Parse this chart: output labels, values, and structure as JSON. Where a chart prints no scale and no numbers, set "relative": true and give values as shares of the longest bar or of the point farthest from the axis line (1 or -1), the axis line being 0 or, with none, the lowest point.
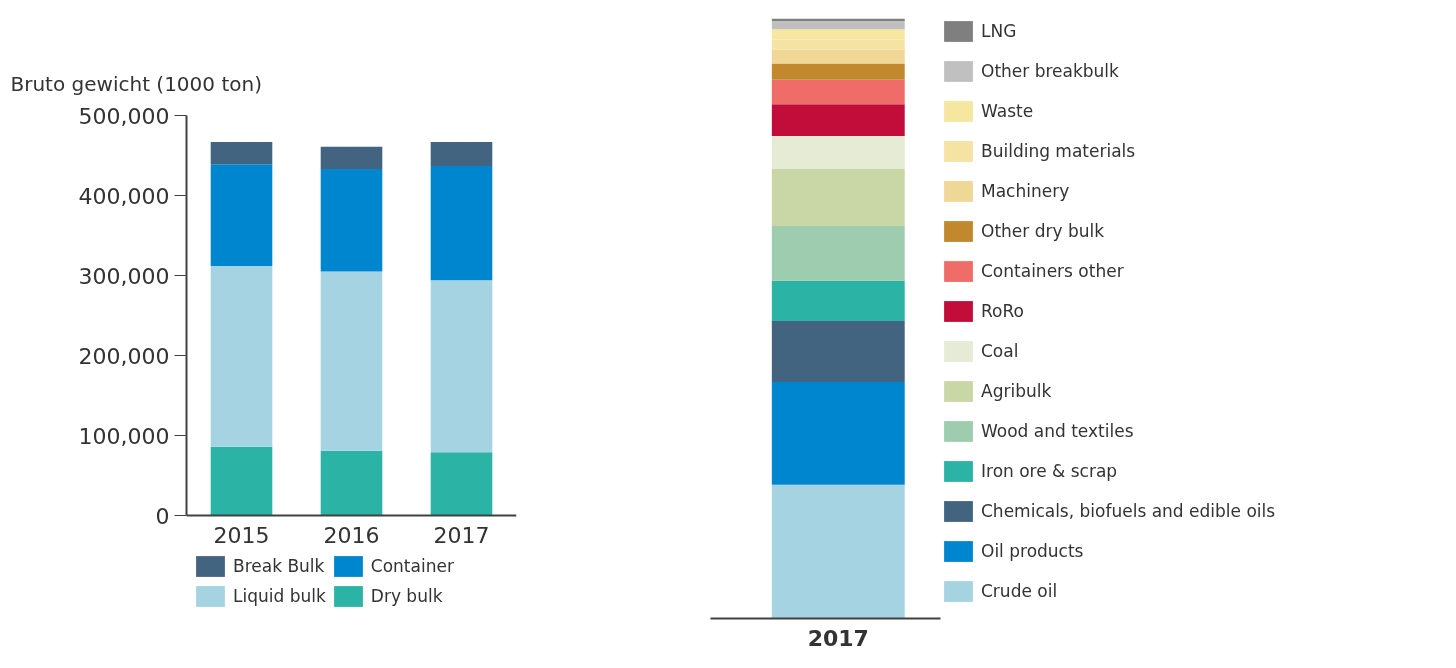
{
  "chart_data": [
    {
      "type": "bar",
      "stacked": true,
      "ylabel": "Bruto gewicht (1000 ton)",
      "categories": [
        "2015",
        "2016",
        "2017"
      ],
      "series": [
        {
          "name": "Dry bulk",
          "color": "#2bb3a6",
          "values": [
            86000,
            81000,
            79000
          ]
        },
        {
          "name": "Liquid bulk",
          "color": "#a6d3e2",
          "values": [
            226000,
            224000,
            215000
          ]
        },
        {
          "name": "Container",
          "color": "#0086cf",
          "values": [
            127000,
            128000,
            143000
          ]
        },
        {
          "name": "Break Bulk",
          "color": "#436480",
          "values": [
            28000,
            28000,
            30000
          ]
        }
      ],
      "ylim": [
        0,
        500000
      ],
      "yticks": [
        0,
        {
          "value": 100000,
          "label": "100,000"
        },
        {
          "value": 200000,
          "label": "200,000"
        },
        {
          "value": 300000,
          "label": "300,000"
        },
        {
          "value": 400000,
          "label": "400,000"
        },
        {
          "value": 500000,
          "label": "500,000"
        }
      ],
      "grid": false,
      "legend": "bottom"
    },
    {
      "type": "bar",
      "stacked": true,
      "relative": true,
      "categories": [
        "2017"
      ],
      "series": [
        {
          "name": "Crude oil",
          "color": "#a6d3e2",
          "values": [
            0.223
          ]
        },
        {
          "name": "Oil products",
          "color": "#0086cf",
          "values": [
            0.171
          ]
        },
        {
          "name": "Chemicals, biofuels and edible oils",
          "color": "#436480",
          "values": [
            0.102
          ]
        },
        {
          "name": "Iron ore & scrap",
          "color": "#2bb3a6",
          "values": [
            0.067
          ]
        },
        {
          "name": "Wood and textiles",
          "color": "#9dcdae",
          "values": [
            0.091
          ]
        },
        {
          "name": "Agribulk",
          "color": "#c9d6a6",
          "values": [
            0.096
          ]
        },
        {
          "name": "Coal",
          "color": "#e5ebd5",
          "values": [
            0.054
          ]
        },
        {
          "name": "RoRo",
          "color": "#c20d3a",
          "values": [
            0.053
          ]
        },
        {
          "name": "Containers other",
          "color": "#f06c69",
          "values": [
            0.041
          ]
        },
        {
          "name": "Other dry bulk",
          "color": "#c2882e",
          "values": [
            0.027
          ]
        },
        {
          "name": "Machinery",
          "color": "#f0d796",
          "values": [
            0.023
          ]
        },
        {
          "name": "Building materials",
          "color": "#f4e3a2",
          "values": [
            0.017
          ]
        },
        {
          "name": "Waste",
          "color": "#f5e6a0",
          "values": [
            0.017
          ]
        },
        {
          "name": "Other breakbulk",
          "color": "#c0c0c0",
          "values": [
            0.014
          ]
        },
        {
          "name": "LNG",
          "color": "#7f7f7f",
          "values": [
            0.004
          ]
        }
      ],
      "grid": false,
      "legend": "right"
    }
  ]
}
